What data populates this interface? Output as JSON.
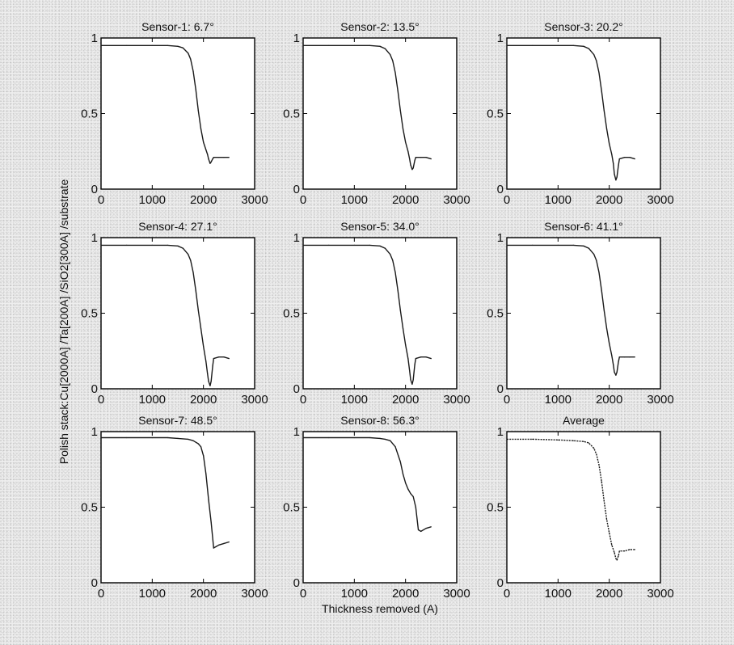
{
  "colors": {
    "line": "#1a1a1a",
    "axes": "#000000",
    "plot_bg": "#ffffff",
    "text": "#111111"
  },
  "labels": {
    "ylabel": "Polish stack:Cu[2000A] /Ta[200A] /SiO2[300A] /substrate",
    "xlabel": "Thickness removed (A)"
  },
  "chart_data": [
    {
      "type": "line",
      "title": "Sensor-1: 6.7°",
      "xlabel": "",
      "ylabel": "",
      "xlim": [
        0,
        3000
      ],
      "ylim": [
        0,
        1
      ],
      "xticks": [
        "0",
        "1000",
        "2000",
        "3000"
      ],
      "yticks": [
        "0",
        "0.5",
        "1"
      ],
      "series": [
        {
          "name": "Sensor-1",
          "x": [
            0,
            500,
            1000,
            1300,
            1500,
            1600,
            1700,
            1750,
            1800,
            1850,
            1900,
            1950,
            2000,
            2050,
            2080,
            2100,
            2130,
            2150,
            2180,
            2200,
            2300,
            2400,
            2500
          ],
          "y": [
            0.95,
            0.95,
            0.95,
            0.95,
            0.945,
            0.935,
            0.9,
            0.86,
            0.78,
            0.66,
            0.52,
            0.4,
            0.31,
            0.26,
            0.23,
            0.2,
            0.17,
            0.18,
            0.2,
            0.21,
            0.21,
            0.21,
            0.21
          ]
        }
      ]
    },
    {
      "type": "line",
      "title": "Sensor-2: 13.5°",
      "xlabel": "",
      "ylabel": "",
      "xlim": [
        0,
        3000
      ],
      "ylim": [
        0,
        1
      ],
      "xticks": [
        "0",
        "1000",
        "2000",
        "3000"
      ],
      "yticks": [
        "0",
        "0.5",
        "1"
      ],
      "series": [
        {
          "name": "Sensor-2",
          "x": [
            0,
            500,
            1000,
            1300,
            1500,
            1600,
            1700,
            1750,
            1800,
            1850,
            1900,
            1950,
            2000,
            2050,
            2080,
            2100,
            2130,
            2150,
            2180,
            2200,
            2300,
            2400,
            2500
          ],
          "y": [
            0.95,
            0.95,
            0.95,
            0.95,
            0.945,
            0.93,
            0.89,
            0.85,
            0.77,
            0.65,
            0.52,
            0.4,
            0.31,
            0.25,
            0.2,
            0.16,
            0.13,
            0.14,
            0.19,
            0.21,
            0.21,
            0.21,
            0.2
          ]
        }
      ]
    },
    {
      "type": "line",
      "title": "Sensor-3: 20.2°",
      "xlabel": "",
      "ylabel": "",
      "xlim": [
        0,
        3000
      ],
      "ylim": [
        0,
        1
      ],
      "xticks": [
        "0",
        "1000",
        "2000",
        "3000"
      ],
      "yticks": [
        "0",
        "0.5",
        "1"
      ],
      "series": [
        {
          "name": "Sensor-3",
          "x": [
            0,
            500,
            1000,
            1300,
            1500,
            1600,
            1700,
            1750,
            1800,
            1850,
            1900,
            1950,
            2000,
            2050,
            2080,
            2100,
            2130,
            2150,
            2180,
            2200,
            2300,
            2400,
            2500
          ],
          "y": [
            0.95,
            0.95,
            0.95,
            0.95,
            0.945,
            0.93,
            0.89,
            0.85,
            0.77,
            0.65,
            0.52,
            0.4,
            0.3,
            0.23,
            0.17,
            0.1,
            0.06,
            0.08,
            0.16,
            0.2,
            0.21,
            0.21,
            0.2
          ]
        }
      ]
    },
    {
      "type": "line",
      "title": "Sensor-4: 27.1°",
      "xlabel": "",
      "ylabel": "",
      "xlim": [
        0,
        3000
      ],
      "ylim": [
        0,
        1
      ],
      "xticks": [
        "0",
        "1000",
        "2000",
        "3000"
      ],
      "yticks": [
        "0",
        "0.5",
        "1"
      ],
      "series": [
        {
          "name": "Sensor-4",
          "x": [
            0,
            500,
            1000,
            1300,
            1500,
            1600,
            1700,
            1750,
            1800,
            1850,
            1900,
            1950,
            2000,
            2050,
            2080,
            2100,
            2130,
            2150,
            2180,
            2200,
            2300,
            2400,
            2500
          ],
          "y": [
            0.95,
            0.95,
            0.95,
            0.95,
            0.945,
            0.93,
            0.89,
            0.85,
            0.77,
            0.65,
            0.52,
            0.4,
            0.28,
            0.18,
            0.1,
            0.05,
            0.02,
            0.05,
            0.15,
            0.2,
            0.21,
            0.21,
            0.2
          ]
        }
      ]
    },
    {
      "type": "line",
      "title": "Sensor-5: 34.0°",
      "xlabel": "",
      "ylabel": "",
      "xlim": [
        0,
        3000
      ],
      "ylim": [
        0,
        1
      ],
      "xticks": [
        "0",
        "1000",
        "2000",
        "3000"
      ],
      "yticks": [
        "0",
        "0.5",
        "1"
      ],
      "series": [
        {
          "name": "Sensor-5",
          "x": [
            0,
            500,
            1000,
            1300,
            1500,
            1600,
            1700,
            1750,
            1800,
            1850,
            1900,
            1950,
            2000,
            2050,
            2080,
            2100,
            2130,
            2150,
            2180,
            2200,
            2300,
            2400,
            2500
          ],
          "y": [
            0.95,
            0.95,
            0.95,
            0.95,
            0.945,
            0.93,
            0.89,
            0.85,
            0.77,
            0.65,
            0.52,
            0.4,
            0.29,
            0.2,
            0.12,
            0.06,
            0.03,
            0.06,
            0.16,
            0.2,
            0.21,
            0.21,
            0.2
          ]
        }
      ]
    },
    {
      "type": "line",
      "title": "Sensor-6: 41.1°",
      "xlabel": "",
      "ylabel": "",
      "xlim": [
        0,
        3000
      ],
      "ylim": [
        0,
        1
      ],
      "xticks": [
        "0",
        "1000",
        "2000",
        "3000"
      ],
      "yticks": [
        "0",
        "0.5",
        "1"
      ],
      "series": [
        {
          "name": "Sensor-6",
          "x": [
            0,
            500,
            1000,
            1300,
            1500,
            1600,
            1700,
            1750,
            1800,
            1850,
            1900,
            1950,
            2000,
            2050,
            2080,
            2100,
            2130,
            2150,
            2180,
            2200,
            2300,
            2400,
            2500
          ],
          "y": [
            0.95,
            0.95,
            0.95,
            0.95,
            0.945,
            0.93,
            0.89,
            0.85,
            0.77,
            0.65,
            0.52,
            0.4,
            0.3,
            0.22,
            0.16,
            0.11,
            0.09,
            0.11,
            0.18,
            0.21,
            0.21,
            0.21,
            0.21
          ]
        }
      ]
    },
    {
      "type": "line",
      "title": "Sensor-7: 48.5°",
      "xlabel": "",
      "ylabel": "",
      "xlim": [
        0,
        3000
      ],
      "ylim": [
        0,
        1
      ],
      "xticks": [
        "0",
        "1000",
        "2000",
        "3000"
      ],
      "yticks": [
        "0",
        "0.5",
        "1"
      ],
      "series": [
        {
          "name": "Sensor-7",
          "x": [
            0,
            500,
            1000,
            1300,
            1500,
            1700,
            1800,
            1900,
            1950,
            2000,
            2050,
            2100,
            2150,
            2200,
            2250,
            2300,
            2400,
            2500
          ],
          "y": [
            0.96,
            0.96,
            0.96,
            0.96,
            0.955,
            0.95,
            0.94,
            0.92,
            0.9,
            0.84,
            0.72,
            0.55,
            0.4,
            0.23,
            0.24,
            0.25,
            0.26,
            0.27
          ]
        }
      ]
    },
    {
      "type": "line",
      "title": "Sensor-8: 56.3°",
      "xlabel": "",
      "ylabel": "",
      "xlim": [
        0,
        3000
      ],
      "ylim": [
        0,
        1
      ],
      "xticks": [
        "0",
        "1000",
        "2000",
        "3000"
      ],
      "yticks": [
        "0",
        "0.5",
        "1"
      ],
      "series": [
        {
          "name": "Sensor-8",
          "x": [
            0,
            500,
            1000,
            1300,
            1500,
            1600,
            1700,
            1800,
            1900,
            1950,
            2000,
            2050,
            2100,
            2150,
            2200,
            2250,
            2300,
            2400,
            2500
          ],
          "y": [
            0.96,
            0.96,
            0.96,
            0.96,
            0.955,
            0.95,
            0.94,
            0.9,
            0.8,
            0.72,
            0.66,
            0.62,
            0.59,
            0.57,
            0.5,
            0.35,
            0.34,
            0.36,
            0.37
          ]
        }
      ]
    },
    {
      "type": "line",
      "title": "Average",
      "xlabel": "",
      "ylabel": "",
      "xlim": [
        0,
        3000
      ],
      "ylim": [
        0,
        1
      ],
      "xticks": [
        "0",
        "1000",
        "2000",
        "3000"
      ],
      "yticks": [
        "0",
        "0.5",
        "1"
      ],
      "series": [
        {
          "name": "Average",
          "x": [
            0,
            500,
            1000,
            1300,
            1500,
            1600,
            1700,
            1750,
            1800,
            1850,
            1900,
            1950,
            2000,
            2050,
            2100,
            2130,
            2150,
            2180,
            2200,
            2300,
            2400,
            2500
          ],
          "y": [
            0.95,
            0.95,
            0.945,
            0.94,
            0.935,
            0.925,
            0.89,
            0.85,
            0.78,
            0.67,
            0.54,
            0.42,
            0.33,
            0.25,
            0.2,
            0.16,
            0.15,
            0.18,
            0.21,
            0.21,
            0.22,
            0.22
          ]
        }
      ]
    }
  ]
}
